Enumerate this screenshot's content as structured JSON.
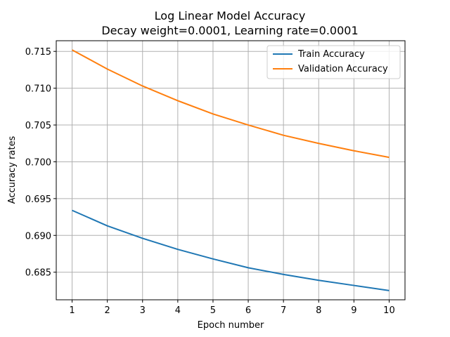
{
  "chart_data": {
    "type": "line",
    "title": "Log Linear Model Accuracy",
    "subtitle": "Decay weight=0.0001, Learning rate=0.0001",
    "xlabel": "Epoch number",
    "ylabel": "Accuracy rates",
    "x": [
      1,
      2,
      3,
      4,
      5,
      6,
      7,
      8,
      9,
      10
    ],
    "xticks": [
      "1",
      "2",
      "3",
      "4",
      "5",
      "6",
      "7",
      "8",
      "9",
      "10"
    ],
    "yticks": [
      "0.685",
      "0.690",
      "0.695",
      "0.700",
      "0.705",
      "0.710",
      "0.715"
    ],
    "ytick_values": [
      0.685,
      0.69,
      0.695,
      0.7,
      0.705,
      0.71,
      0.715
    ],
    "xlim": [
      0.55,
      10.45
    ],
    "ylim": [
      0.68125,
      0.71645
    ],
    "grid": true,
    "legend_position": "top-right",
    "series": [
      {
        "name": "Train Accuracy",
        "color": "#1f77b4",
        "values": [
          0.6934,
          0.6913,
          0.6896,
          0.6881,
          0.6868,
          0.6856,
          0.6847,
          0.6839,
          0.6832,
          0.6825
        ]
      },
      {
        "name": "Validation Accuracy",
        "color": "#ff7f0e",
        "values": [
          0.7152,
          0.7126,
          0.7103,
          0.7083,
          0.7065,
          0.705,
          0.7036,
          0.7025,
          0.7015,
          0.7006
        ]
      }
    ]
  }
}
